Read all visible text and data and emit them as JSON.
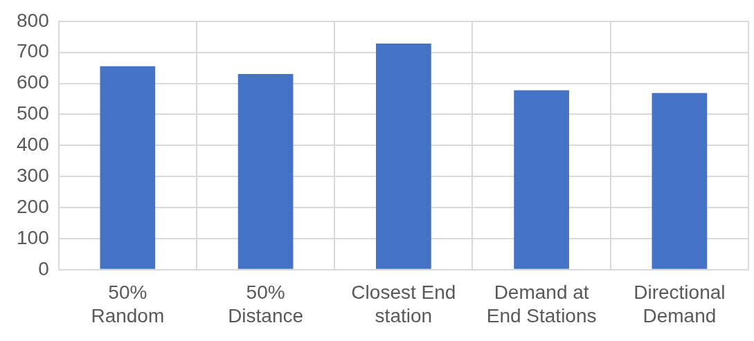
{
  "chart_data": {
    "type": "bar",
    "categories": [
      "50%\nRandom",
      "50%\nDistance",
      "Closest End\nstation",
      "Demand at\nEnd Stations",
      "Directional\nDemand"
    ],
    "values": [
      655,
      630,
      728,
      578,
      569
    ],
    "color": "#4472c4",
    "ylim": [
      0,
      800
    ],
    "yticks": [
      0,
      100,
      200,
      300,
      400,
      500,
      600,
      700,
      800
    ],
    "grid": true
  }
}
